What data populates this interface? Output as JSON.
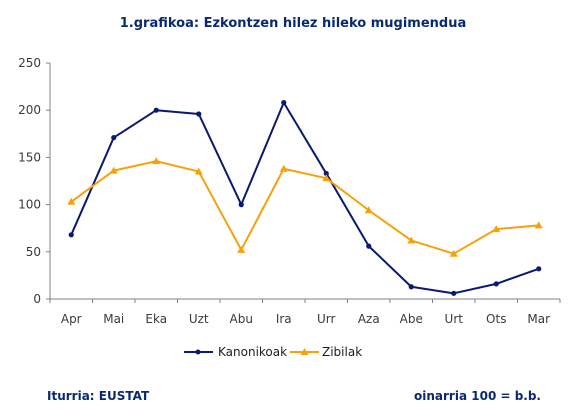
{
  "chart_data": {
    "type": "line",
    "title": "1.grafikoa: Ezkontzen hilez hileko mugimendua",
    "categories": [
      "Apr",
      "Mai",
      "Eka",
      "Uzt",
      "Abu",
      "Ira",
      "Urr",
      "Aza",
      "Abe",
      "Urt",
      "Ots",
      "Mar"
    ],
    "series": [
      {
        "name": "Kanonikoak",
        "color": "#0a1a70",
        "marker": "circle",
        "values": [
          68,
          171,
          200,
          196,
          100,
          208,
          133,
          56,
          13,
          6,
          16,
          32
        ]
      },
      {
        "name": "Zibilak",
        "color": "#f5a20c",
        "marker": "triangle",
        "values": [
          103,
          136,
          146,
          135,
          52,
          138,
          128,
          94,
          62,
          48,
          74,
          78
        ]
      }
    ],
    "ylim": [
      0,
      250
    ],
    "yticks": [
      "0",
      "50",
      "100",
      "150",
      "200",
      "250"
    ],
    "grid": false,
    "legend_position": "bottom"
  },
  "footer": {
    "source": "Iturria: EUSTAT",
    "base_note": "oinarria 100 = b.b."
  }
}
